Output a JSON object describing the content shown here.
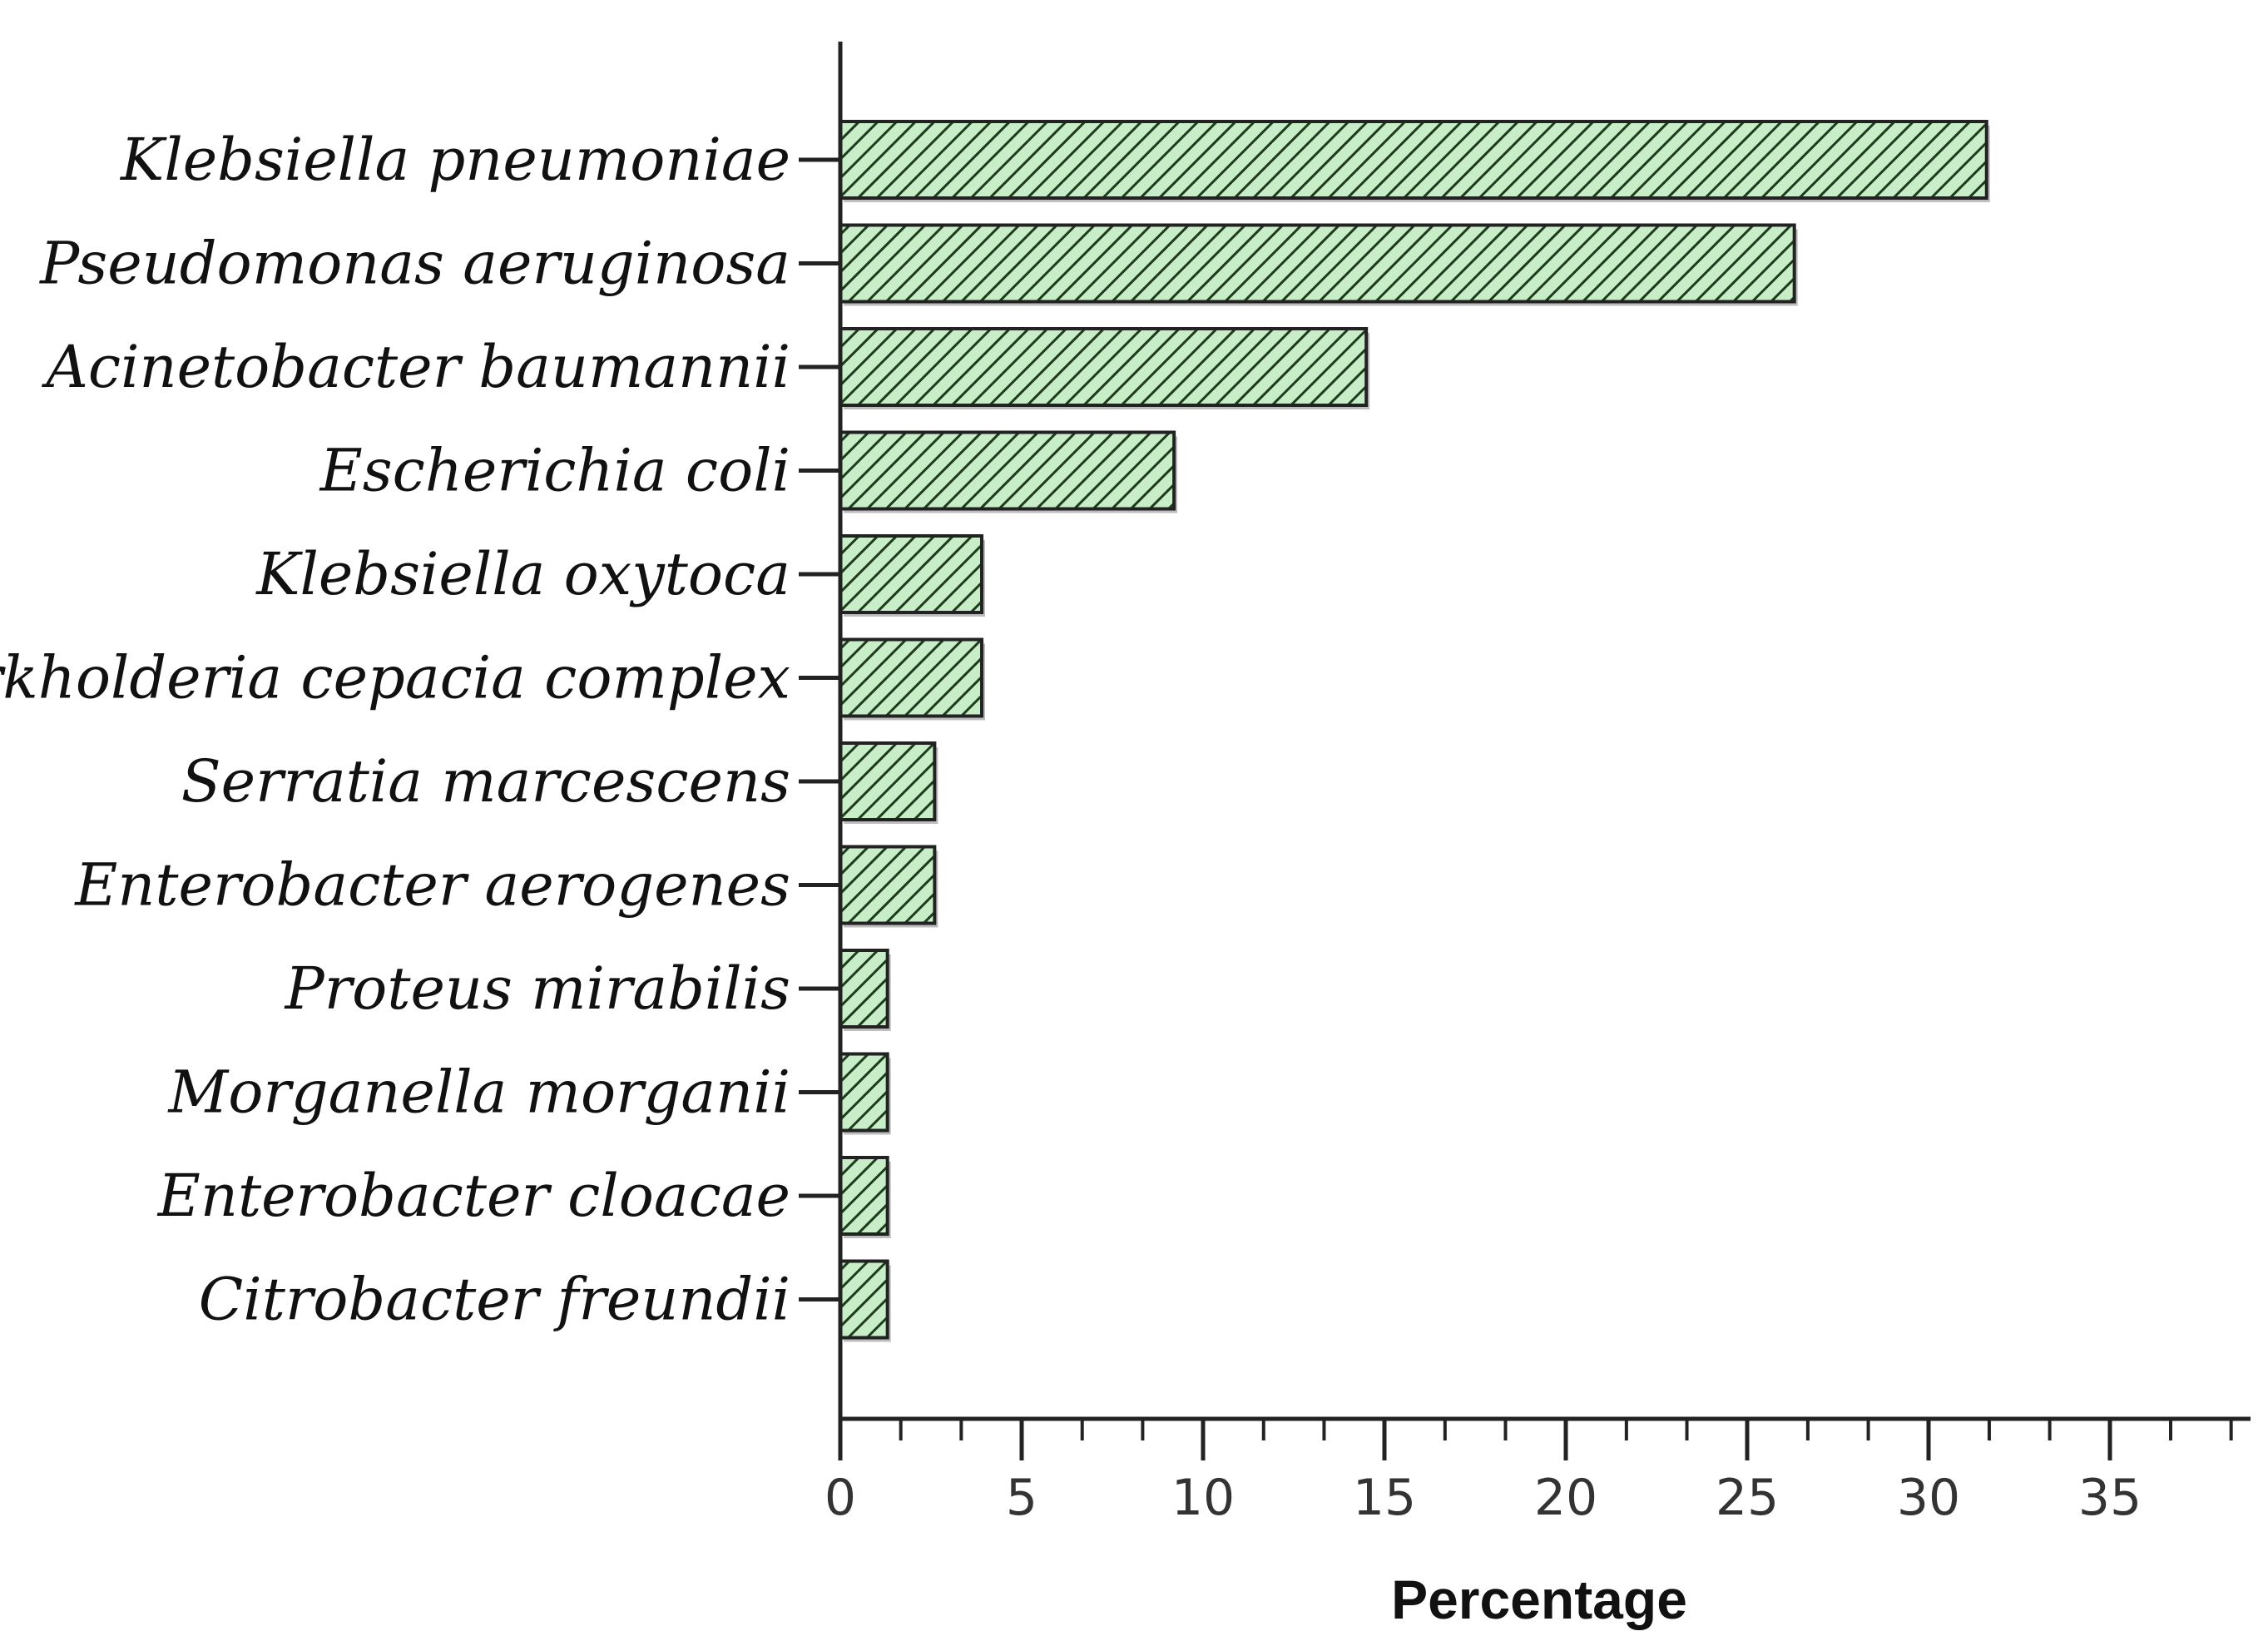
{
  "chart_data": {
    "type": "bar",
    "orientation": "horizontal",
    "categories": [
      "Klebsiella pneumoniae",
      "Pseudomonas aeruginosa",
      "Acinetobacter baumannii",
      "Escherichia coli",
      "Klebsiella oxytoca",
      "Burkholderia cepacia complex",
      "Serratia marcescens",
      "Enterobacter aerogenes",
      "Proteus mirabilis",
      "Morganella morganii",
      "Enterobacter cloacae",
      "Citrobacter freundii"
    ],
    "values": [
      31.6,
      26.3,
      14.5,
      9.2,
      3.9,
      3.9,
      2.6,
      2.6,
      1.3,
      1.3,
      1.3,
      1.3
    ],
    "xlabel": "Percentage",
    "ylabel": "",
    "title": "",
    "xlim": [
      0,
      38.8
    ],
    "xticks": [
      0,
      5,
      10,
      15,
      20,
      25,
      30,
      35
    ],
    "xtick_labels": [
      "0",
      "5",
      "10",
      "15",
      "20",
      "25",
      "30",
      "35"
    ],
    "minor_tick_step": 1.667,
    "grid": false,
    "legend": "none",
    "bar_fill_color": "#c8eec8",
    "bar_hatch_color": "#1f3a1f",
    "bar_edge_color": "#222222",
    "hatch": "diagonal"
  }
}
